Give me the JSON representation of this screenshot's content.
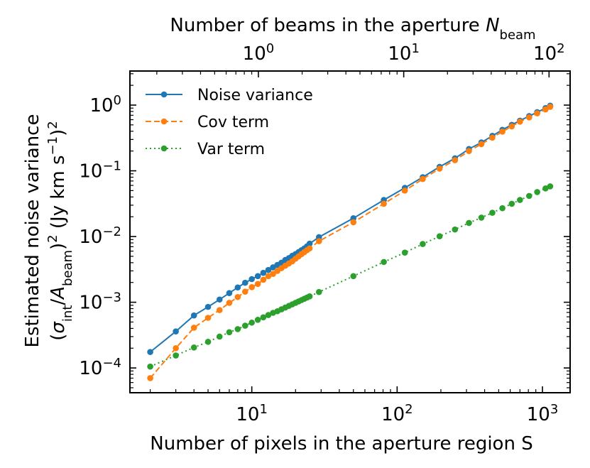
{
  "chart_data": {
    "type": "line",
    "xlabel": "Number of pixels in the aperture region S",
    "ylabel_line1": "Estimated noise variance",
    "ylabel_line2": "(σ_int/A_beam)^2 (Jy km s^-1)^2",
    "top_xlabel": "Number of beams in the aperture N_beam",
    "xscale": "log",
    "yscale": "log",
    "xlim": [
      1.45,
      1550
    ],
    "ylim": [
      4.2e-05,
      3.3
    ],
    "top_axis": {
      "beams_per_pixel_ratio": 11.1,
      "ticks": [
        1,
        10,
        100
      ]
    },
    "x_ticks": [
      10,
      100,
      1000
    ],
    "y_ticks": [
      0.0001,
      0.001,
      0.01,
      0.1,
      1
    ],
    "legend_position": "upper-left",
    "grid": false,
    "x": [
      2,
      3,
      4,
      5,
      6,
      7,
      8,
      9,
      10,
      11,
      12,
      13,
      14,
      15,
      16,
      17,
      18,
      19,
      20,
      21,
      22,
      23,
      24,
      25,
      29,
      50,
      81,
      113,
      150,
      196,
      250,
      312,
      380,
      452,
      530,
      615,
      700,
      810,
      920,
      1050,
      1130
    ],
    "series": [
      {
        "name": "Noise variance",
        "color": "#1f77b4",
        "linestyle": "solid",
        "values": [
          0.000175,
          0.00036,
          0.00063,
          0.00085,
          0.0011,
          0.00138,
          0.00168,
          0.00198,
          0.00225,
          0.0025,
          0.0028,
          0.0031,
          0.0034,
          0.0037,
          0.004,
          0.0044,
          0.0047,
          0.0051,
          0.0054,
          0.0058,
          0.0062,
          0.0066,
          0.0071,
          0.0078,
          0.0098,
          0.019,
          0.036,
          0.055,
          0.08,
          0.115,
          0.155,
          0.215,
          0.27,
          0.34,
          0.42,
          0.5,
          0.58,
          0.68,
          0.78,
          0.9,
          0.98
        ]
      },
      {
        "name": "Cov term",
        "color": "#ff7f0e",
        "linestyle": "dashed",
        "values": [
          7e-05,
          0.0002,
          0.00041,
          0.00058,
          0.00076,
          0.00098,
          0.0012,
          0.00145,
          0.0017,
          0.0019,
          0.0022,
          0.0025,
          0.0027,
          0.003,
          0.0033,
          0.0036,
          0.0039,
          0.0042,
          0.0046,
          0.005,
          0.0054,
          0.0058,
          0.0062,
          0.0066,
          0.0085,
          0.0165,
          0.0315,
          0.05,
          0.075,
          0.108,
          0.145,
          0.2,
          0.255,
          0.32,
          0.395,
          0.475,
          0.56,
          0.65,
          0.75,
          0.86,
          0.94
        ]
      },
      {
        "name": "Var term",
        "color": "#2ca02c",
        "linestyle": "dotted",
        "values": [
          0.000105,
          0.000155,
          0.000205,
          0.00025,
          0.0003,
          0.00035,
          0.00039,
          0.00044,
          0.00049,
          0.00054,
          0.00059,
          0.00064,
          0.00069,
          0.00073,
          0.00078,
          0.00083,
          0.00088,
          0.00093,
          0.00098,
          0.00103,
          0.00108,
          0.00113,
          0.00118,
          0.00123,
          0.00143,
          0.0025,
          0.0041,
          0.0057,
          0.0077,
          0.0101,
          0.0128,
          0.0161,
          0.0194,
          0.023,
          0.027,
          0.0315,
          0.036,
          0.0415,
          0.0475,
          0.054,
          0.058
        ]
      }
    ]
  }
}
